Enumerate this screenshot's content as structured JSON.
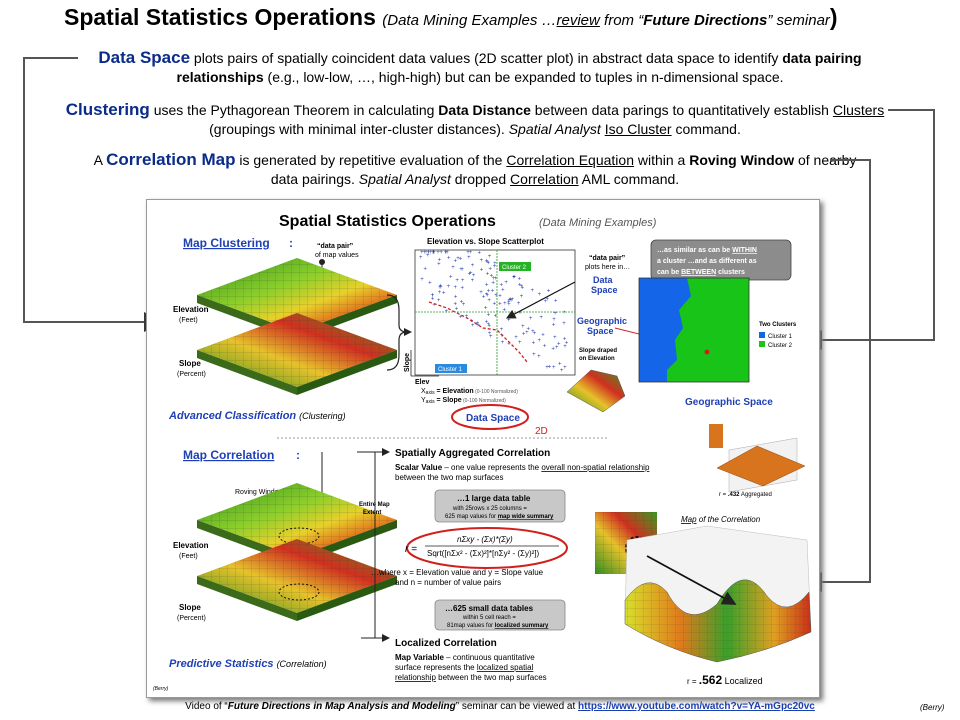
{
  "title": {
    "main": "Spatial Statistics Operations",
    "sub_prefix": "(Data Mining Examples …",
    "sub_review": "review",
    "sub_mid": " from “",
    "sub_future": "Future Directions",
    "sub_end": "” seminar",
    "close_paren": ")"
  },
  "para1": {
    "lead": "Data Space",
    "t1": " plots pairs of spatially coincident data values (2D scatter plot) in abstract data space to identify ",
    "b1": "data pairing relationships",
    "t2": " (e.g., low-low, …, high-high) but can be expanded to tuples in n-dimensional space."
  },
  "para2": {
    "lead": "Clustering",
    "t1": " uses the Pythagorean Theorem in calculating ",
    "b1": "Data Distance",
    "t2": " between data parings to quantitatively establish ",
    "u1": "Clusters",
    "t3": " (groupings with minimal inter-cluster distances).  ",
    "i1": "Spatial Analyst",
    "t4": " ",
    "u2": "Iso Cluster",
    "t5": " command."
  },
  "para3": {
    "a": "A ",
    "lead": "Correlation Map",
    "t1": " is generated by repetitive evaluation of the ",
    "u1": "Correlation Equation",
    "t2": " within a ",
    "b1": "Roving Window",
    "t3": " of nearby data pairings.  ",
    "i1": "Spatial Analyst",
    "t4": " dropped ",
    "u2": "Correlation",
    "t5": " AML command."
  },
  "slide": {
    "title": "Spatial Statistics Operations",
    "subtitle": "(Data Mining Examples)",
    "map_clustering": "Map Clustering",
    "colon": ":",
    "data_pair_1": "“data pair”",
    "data_pair_2": "of map values",
    "elevation": "Elevation",
    "feet": "(Feet)",
    "slope": "Slope",
    "percent": "(Percent)",
    "scatter_title": "Elevation vs. Slope Scatterplot",
    "cluster1": "Cluster 1",
    "cluster2": "Cluster 2",
    "axis_slope": "Slope",
    "axis_elev": "Elev",
    "xaxis_line_a": "X",
    "xaxis_line_b": "axis",
    "xaxis_line_c": " = Elevation",
    "xaxis_line_d": " (0-100 Normalized)",
    "yaxis_line_a": "Y",
    "yaxis_line_b": "axis",
    "yaxis_line_c": " = Slope",
    "yaxis_line_d": " (0-100 Normalized)",
    "plots_here_1": "“data pair”",
    "plots_here_2": "plots here in…",
    "data_space_label_1": "Data",
    "data_space_label_2": "Space",
    "geo_space_label_1": "Geographic",
    "geo_space_label_2": "Space",
    "slope_draped_1": "Slope draped",
    "slope_draped_2": "on Elevation",
    "callout_1": "…as similar as can be ",
    "callout_1u": "WITHIN",
    "callout_2": "a cluster …and as different as",
    "callout_3": "can be ",
    "callout_3u": "BETWEEN",
    "callout_3e": " clusters",
    "two_clusters": "Two Clusters",
    "legend_c1": "Cluster 1",
    "legend_c2": "Cluster 2",
    "advanced_classification": "Advanced Classification",
    "clustering_paren": "(Clustering)",
    "data_space_oval": "Data Space",
    "two_d": "2D",
    "geographic_space": "Geographic Space",
    "map_correlation": "Map Correlation",
    "roving_window": "Roving Window",
    "entire_map_1": "Entire Map",
    "entire_map_2": "Extent",
    "sac_title": "Spatially Aggregated Correlation",
    "scalar_1": "Scalar Value",
    "scalar_2": " – one value represents the ",
    "scalar_3": "overall non-spatial relationship",
    "scalar_4": "between the two map surfaces",
    "large_table_1": "…1 large data table",
    "large_table_2": "with 25rows x 25 columns =",
    "large_table_3": "625 map values for ",
    "large_table_3u": "map wide summary",
    "r_eq": "r =",
    "eq_num": "nΣxy - (Σx)*(Σy)",
    "eq_den": "Sqrt([nΣx² - (Σx)²]*[nΣy² - (Σy)²])",
    "where_1": "…where x = Elevation value and y = Slope value",
    "where_2": "and n = number of value pairs",
    "small_tables_1": "…625 small data tables",
    "small_tables_2": "within 5 cell reach =",
    "small_tables_3": "81map values for ",
    "small_tables_3u": "localized summary",
    "localized_correlation": "Localized Correlation",
    "mapvar_1": "Map Variable",
    "mapvar_2": " – continuous quantitative",
    "mapvar_3": "surface represents the ",
    "mapvar_3u": "localized spatial",
    "mapvar_4": "relationship",
    "mapvar_5": " between the two map surfaces",
    "r_aggregated_a": "r = ",
    "r_aggregated_b": ".432",
    "r_aggregated_c": " Aggregated",
    "map_of_corr_1": "Map",
    "map_of_corr_2": " of the Correlation",
    "r_localized_a": "r = ",
    "r_localized_b": ".562",
    "r_localized_c": " Localized",
    "predictive_statistics": "Predictive Statistics",
    "correlation_paren": "(Correlation)",
    "berry_slide": "(Berry)"
  },
  "footer": {
    "t1": "Video of “",
    "i1": "Future Directions in Map Analysis and Modeling",
    "t2": "” seminar can be viewed at ",
    "link": "https://www.youtube.com/watch?v=YA-mGpc20vc"
  },
  "berry": "(Berry)",
  "colors": {
    "accent_blue": "#0a2b8a",
    "slide_blue": "#1f3fb5",
    "highlight_red": "#d0201e",
    "cluster1": "#1565e8",
    "cluster2": "#19b419",
    "arrow_gray": "#555555"
  }
}
